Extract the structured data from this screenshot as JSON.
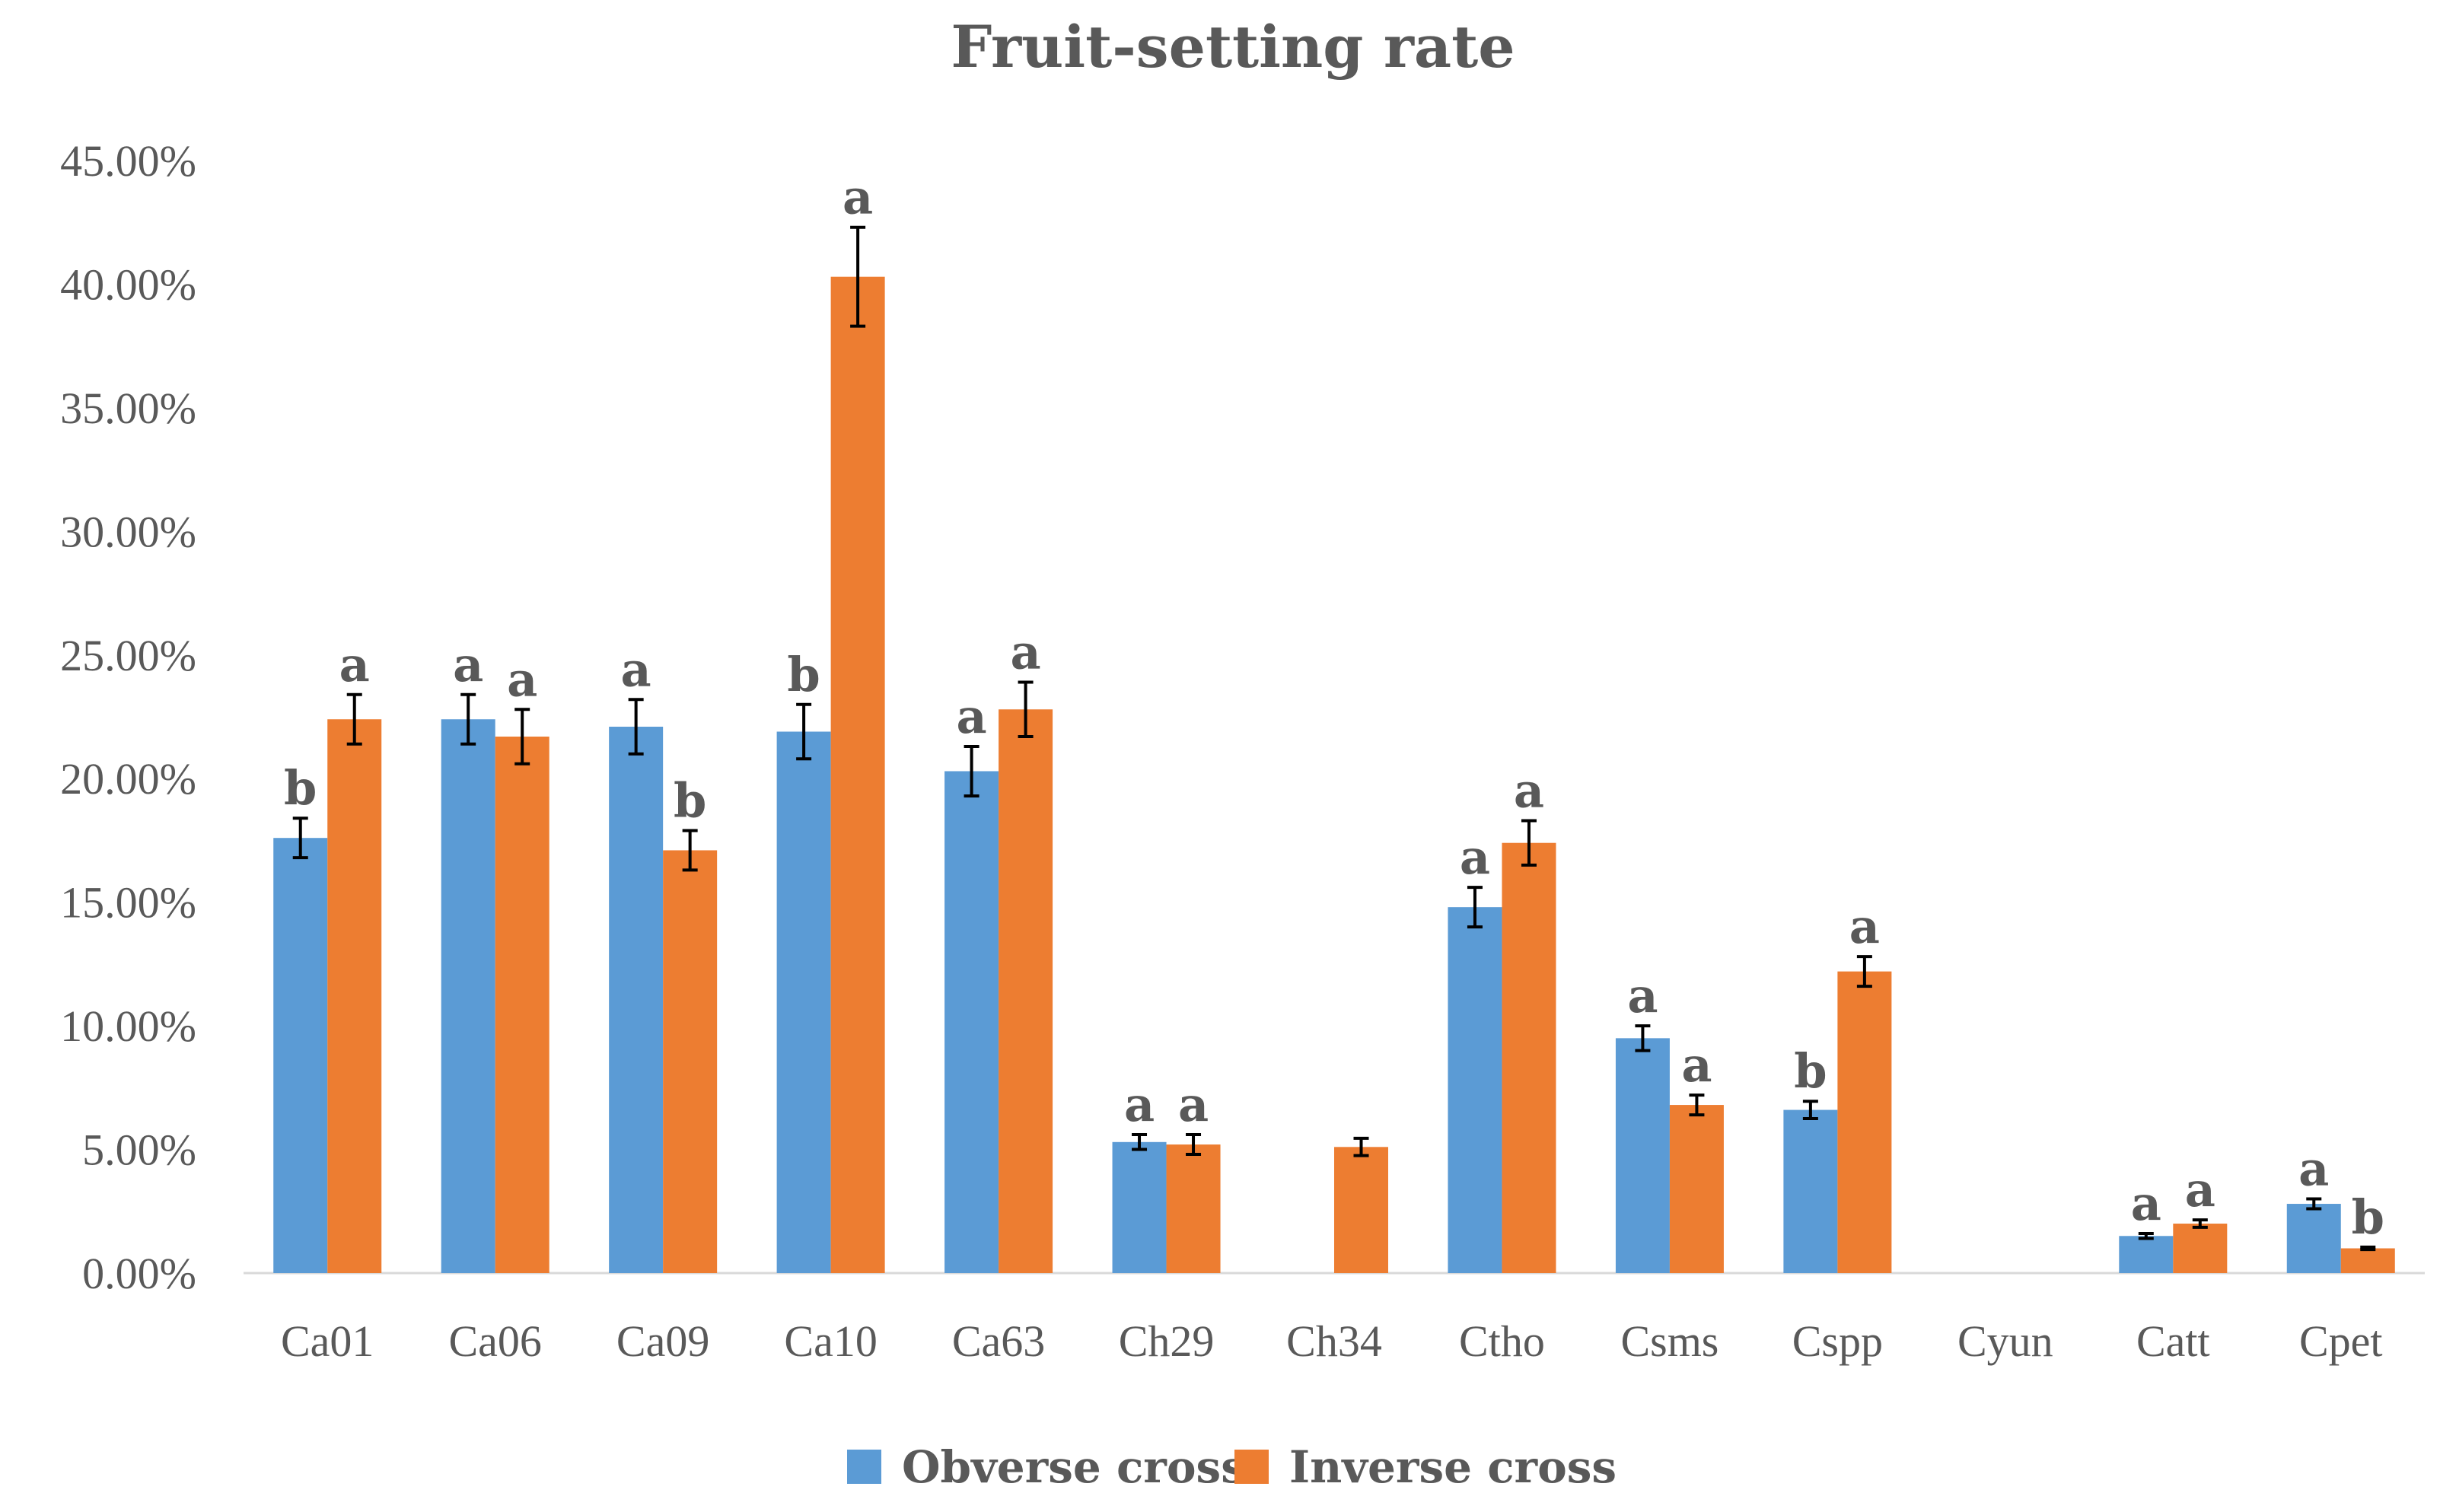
{
  "chart_data": {
    "type": "bar",
    "title": "Fruit-setting rate",
    "xlabel": "",
    "ylabel": "",
    "ylim": [
      0,
      45
    ],
    "y_ticks": [
      "0.00%",
      "5.00%",
      "10.00%",
      "15.00%",
      "20.00%",
      "25.00%",
      "30.00%",
      "35.00%",
      "40.00%",
      "45.00%"
    ],
    "y_tick_values": [
      0,
      5,
      10,
      15,
      20,
      25,
      30,
      35,
      40,
      45
    ],
    "categories": [
      "Ca01",
      "Ca06",
      "Ca09",
      "Ca10",
      "Ca63",
      "Ch29",
      "Ch34",
      "Ctho",
      "Csms",
      "Cspp",
      "Cyun",
      "Catt",
      "Cpet"
    ],
    "series": [
      {
        "name": "Obverse cross",
        "color": "#5b9bd5",
        "values": [
          17.6,
          22.4,
          22.1,
          21.9,
          20.3,
          5.3,
          0,
          14.8,
          9.5,
          6.6,
          0,
          1.5,
          2.8
        ],
        "errors": [
          0.8,
          1.0,
          1.1,
          1.1,
          1.0,
          0.3,
          0,
          0.8,
          0.5,
          0.35,
          0,
          0.1,
          0.2
        ],
        "labels": [
          "b",
          "a",
          "a",
          "b",
          "a",
          "a",
          "",
          "a",
          "a",
          "b",
          "",
          "a",
          "a"
        ]
      },
      {
        "name": "Inverse cross",
        "color": "#ed7d31",
        "values": [
          22.4,
          21.7,
          17.1,
          40.3,
          22.8,
          5.2,
          5.1,
          17.4,
          6.8,
          12.2,
          0,
          2.0,
          1.0
        ],
        "errors": [
          1.0,
          1.1,
          0.8,
          2.0,
          1.1,
          0.4,
          0.35,
          0.9,
          0.4,
          0.6,
          0,
          0.15,
          0.05
        ],
        "labels": [
          "a",
          "a",
          "b",
          "a",
          "a",
          "a",
          "",
          "a",
          "a",
          "a",
          "",
          "a",
          "b"
        ]
      }
    ],
    "legend_position": "bottom-center",
    "grid": false
  }
}
